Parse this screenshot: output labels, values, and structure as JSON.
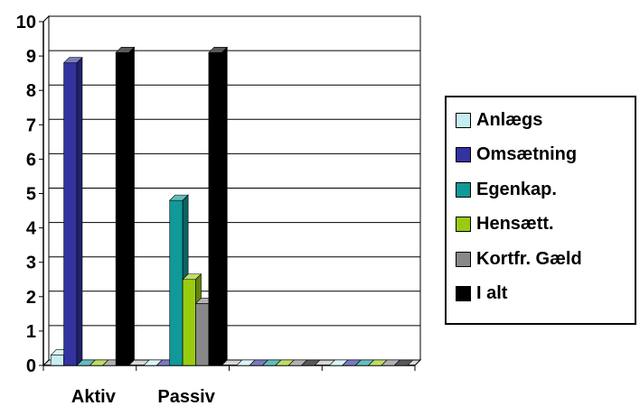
{
  "chart_data": {
    "type": "bar",
    "style": "3d-clustered",
    "categories": [
      "Aktiv",
      "Passiv",
      "",
      ""
    ],
    "series": [
      {
        "name": "Anlægs",
        "color": "#c6eef2",
        "values": [
          0.3,
          0,
          0,
          0
        ]
      },
      {
        "name": "Omsætning",
        "color": "#3333a0",
        "values": [
          8.8,
          0,
          0,
          0
        ]
      },
      {
        "name": "Egenkap.",
        "color": "#119999",
        "values": [
          0,
          4.8,
          0,
          0
        ]
      },
      {
        "name": "Hensætt.",
        "color": "#99cc11",
        "values": [
          0,
          2.5,
          0,
          0
        ]
      },
      {
        "name": "Kortfr. Gæld",
        "color": "#888888",
        "values": [
          0,
          1.8,
          0,
          0
        ]
      },
      {
        "name": "I alt",
        "color": "#000000",
        "values": [
          9.1,
          9.1,
          0,
          0
        ]
      }
    ],
    "ylim": [
      0,
      10
    ],
    "yticks": [
      "0",
      "1",
      "2",
      "3",
      "4",
      "5",
      "6",
      "7",
      "8",
      "9",
      "10"
    ],
    "grid": true,
    "legend": "right"
  }
}
